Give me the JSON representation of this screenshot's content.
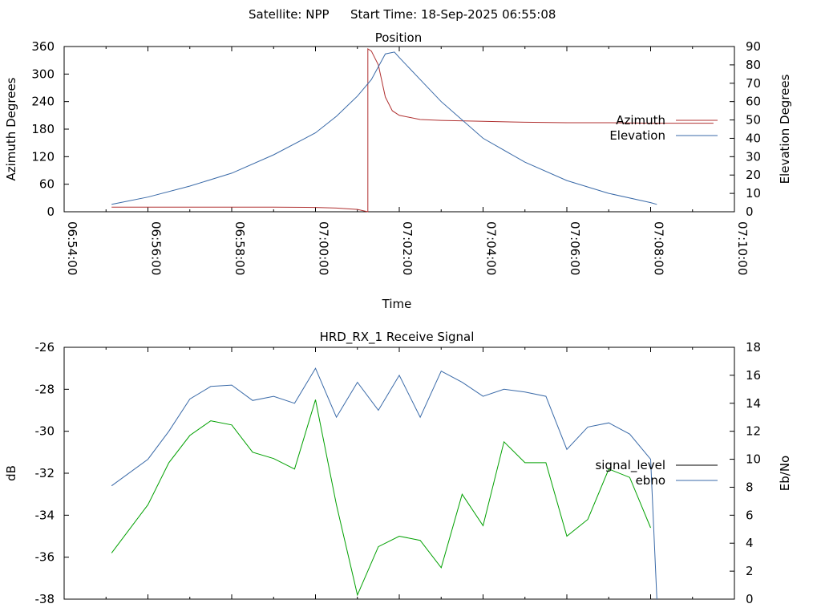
{
  "header": {
    "satellite_label": "Satellite: NPP",
    "start_time_label": "Start Time: 18-Sep-2025 06:55:08"
  },
  "chart_data": [
    {
      "type": "line",
      "title": "Position",
      "xlabel": "Time",
      "ylabel_left": "Azimuth Degrees",
      "ylabel_right": "Elevation Degrees",
      "x_ticks": [
        "06:54:00",
        "06:56:00",
        "06:58:00",
        "07:00:00",
        "07:02:00",
        "07:04:00",
        "07:06:00",
        "07:08:00",
        "07:10:00"
      ],
      "x_range": [
        "06:54:00",
        "07:10:00"
      ],
      "y_left_range": [
        0,
        360
      ],
      "y_left_ticks": [
        "0",
        "60",
        "120",
        "180",
        "240",
        "300",
        "360"
      ],
      "y_right_range": [
        0,
        90
      ],
      "y_right_ticks": [
        "0",
        "10",
        "20",
        "30",
        "40",
        "50",
        "60",
        "70",
        "80",
        "90"
      ],
      "legend_position": "right",
      "grid": false,
      "series": [
        {
          "name": "Azimuth",
          "axis": "left",
          "color": "#b03030",
          "points": [
            [
              "06:55:08",
              10
            ],
            [
              "06:56:00",
              10
            ],
            [
              "06:57:00",
              10
            ],
            [
              "06:58:00",
              10
            ],
            [
              "06:59:00",
              10
            ],
            [
              "07:00:00",
              9.5
            ],
            [
              "07:00:30",
              8
            ],
            [
              "07:01:00",
              5
            ],
            [
              "07:01:15",
              0
            ],
            [
              "07:01:15",
              355
            ],
            [
              "07:01:20",
              350
            ],
            [
              "07:01:30",
              320
            ],
            [
              "07:01:40",
              250
            ],
            [
              "07:01:50",
              220
            ],
            [
              "07:02:00",
              210
            ],
            [
              "07:02:30",
              201
            ],
            [
              "07:03:00",
              199
            ],
            [
              "07:04:00",
              197
            ],
            [
              "07:05:00",
              195
            ],
            [
              "07:06:00",
              194
            ],
            [
              "07:07:00",
              194
            ],
            [
              "07:08:00",
              193
            ],
            [
              "07:09:00",
              193
            ],
            [
              "07:09:30",
              193
            ]
          ]
        },
        {
          "name": "Elevation",
          "axis": "right",
          "color": "#3a6aa8",
          "points": [
            [
              "06:55:08",
              4
            ],
            [
              "06:56:00",
              8
            ],
            [
              "06:57:00",
              14
            ],
            [
              "06:58:00",
              21
            ],
            [
              "06:59:00",
              31
            ],
            [
              "07:00:00",
              43
            ],
            [
              "07:00:30",
              52
            ],
            [
              "07:01:00",
              63
            ],
            [
              "07:01:20",
              72
            ],
            [
              "07:01:40",
              86
            ],
            [
              "07:01:53",
              87
            ],
            [
              "07:02:00",
              84
            ],
            [
              "07:02:30",
              72
            ],
            [
              "07:03:00",
              60
            ],
            [
              "07:04:00",
              40
            ],
            [
              "07:05:00",
              27
            ],
            [
              "07:06:00",
              17
            ],
            [
              "07:07:00",
              10
            ],
            [
              "07:08:00",
              5
            ],
            [
              "07:08:09",
              4
            ]
          ]
        }
      ]
    },
    {
      "type": "line",
      "title": "HRD_RX_1 Receive Signal",
      "ylabel_left": "dB",
      "ylabel_right": "Eb/No",
      "x_range": [
        "06:54:00",
        "07:10:00"
      ],
      "y_left_range": [
        -38,
        -26
      ],
      "y_left_ticks": [
        "-26",
        "-28",
        "-30",
        "-32",
        "-34",
        "-36",
        "-38"
      ],
      "y_right_range": [
        0,
        18
      ],
      "y_right_ticks": [
        "0",
        "2",
        "4",
        "6",
        "8",
        "10",
        "12",
        "14",
        "16",
        "18"
      ],
      "legend_position": "right",
      "grid": false,
      "series": [
        {
          "name": "signal_level",
          "axis": "left",
          "color": "#000000",
          "points": []
        },
        {
          "name": "ebno",
          "axis": "right",
          "color": "#3a6aa8",
          "points": [
            [
              "06:55:08",
              8.1
            ],
            [
              "06:56:00",
              10
            ],
            [
              "06:56:30",
              12.0
            ],
            [
              "06:57:00",
              14.3
            ],
            [
              "06:57:30",
              15.2
            ],
            [
              "06:58:00",
              15.3
            ],
            [
              "06:58:30",
              14.2
            ],
            [
              "06:59:00",
              14.5
            ],
            [
              "06:59:30",
              14.0
            ],
            [
              "07:00:00",
              16.5
            ],
            [
              "07:00:30",
              13
            ],
            [
              "07:01:00",
              15.5
            ],
            [
              "07:01:30",
              13.5
            ],
            [
              "07:02:00",
              16.0
            ],
            [
              "07:02:30",
              13.0
            ],
            [
              "07:03:00",
              16.3
            ],
            [
              "07:03:30",
              15.5
            ],
            [
              "07:04:00",
              14.5
            ],
            [
              "07:04:30",
              15.0
            ],
            [
              "07:05:00",
              14.8
            ],
            [
              "07:05:30",
              14.5
            ],
            [
              "07:06:00",
              10.7
            ],
            [
              "07:06:30",
              12.3
            ],
            [
              "07:07:00",
              12.6
            ],
            [
              "07:07:30",
              11.8
            ],
            [
              "07:08:00",
              10.0
            ],
            [
              "07:08:09",
              0
            ]
          ]
        },
        {
          "name": "signal_level (green trace)",
          "axis": "left",
          "color": "#00a000",
          "points": [
            [
              "06:55:08",
              -35.8
            ],
            [
              "06:56:00",
              -33.5
            ],
            [
              "06:56:30",
              -31.5
            ],
            [
              "06:57:00",
              -30.2
            ],
            [
              "06:57:30",
              -29.5
            ],
            [
              "06:58:00",
              -29.7
            ],
            [
              "06:58:30",
              -31.0
            ],
            [
              "06:59:00",
              -31.3
            ],
            [
              "06:59:30",
              -31.8
            ],
            [
              "07:00:00",
              -28.5
            ],
            [
              "07:00:30",
              -33.5
            ],
            [
              "07:01:00",
              -37.8
            ],
            [
              "07:01:30",
              -35.5
            ],
            [
              "07:02:00",
              -35.0
            ],
            [
              "07:02:30",
              -35.2
            ],
            [
              "07:03:00",
              -36.5
            ],
            [
              "07:03:30",
              -33.0
            ],
            [
              "07:04:00",
              -34.5
            ],
            [
              "07:04:30",
              -30.5
            ],
            [
              "07:05:00",
              -31.5
            ],
            [
              "07:05:30",
              -31.5
            ],
            [
              "07:06:00",
              -35.0
            ],
            [
              "07:06:30",
              -34.2
            ],
            [
              "07:07:00",
              -31.8
            ],
            [
              "07:07:30",
              -32.2
            ],
            [
              "07:08:00",
              -34.6
            ]
          ]
        }
      ]
    }
  ]
}
